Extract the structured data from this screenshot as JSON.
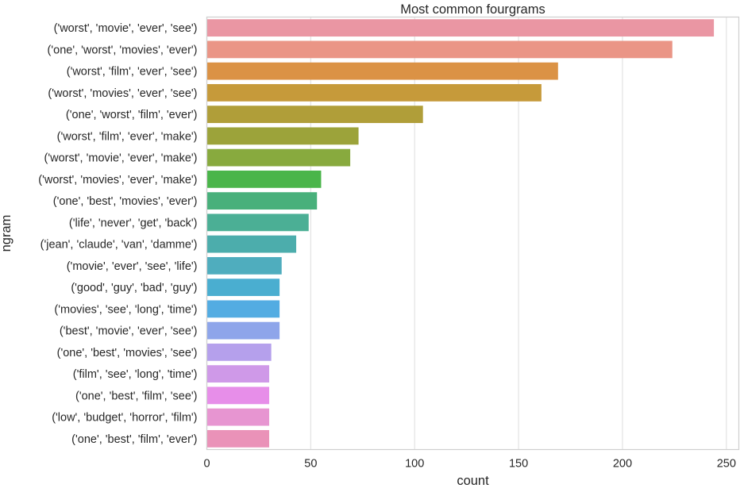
{
  "chart_data": {
    "type": "bar",
    "orientation": "horizontal",
    "title": "Most common fourgrams",
    "xlabel": "count",
    "ylabel": "ngram",
    "xlim": [
      0,
      256
    ],
    "xticks": [
      0,
      50,
      100,
      150,
      200,
      250
    ],
    "grid": "vertical",
    "categories": [
      "('worst', 'movie', 'ever', 'see')",
      "('one', 'worst', 'movies', 'ever')",
      "('worst', 'film', 'ever', 'see')",
      "('worst', 'movies', 'ever', 'see')",
      "('one', 'worst', 'film', 'ever')",
      "('worst', 'film', 'ever', 'make')",
      "('worst', 'movie', 'ever', 'make')",
      "('worst', 'movies', 'ever', 'make')",
      "('one', 'best', 'movies', 'ever')",
      "('life', 'never', 'get', 'back')",
      "('jean', 'claude', 'van', 'damme')",
      "('movie', 'ever', 'see', 'life')",
      "('good', 'guy', 'bad', 'guy')",
      "('movies', 'see', 'long', 'time')",
      "('best', 'movie', 'ever', 'see')",
      "('one', 'best', 'movies', 'see')",
      "('film', 'see', 'long', 'time')",
      "('one', 'best', 'film', 'see')",
      "('low', 'budget', 'horror', 'film')",
      "('one', 'best', 'film', 'ever')"
    ],
    "values": [
      244,
      224,
      169,
      161,
      104,
      73,
      69,
      55,
      53,
      49,
      43,
      36,
      35,
      35,
      35,
      31,
      30,
      30,
      30,
      30
    ],
    "colors": [
      "#ea96a3",
      "#ea9586",
      "#db9245",
      "#c69a3a",
      "#b09e39",
      "#9ca33a",
      "#88aa3e",
      "#4ab54a",
      "#48b07b",
      "#4baf95",
      "#4cadac",
      "#4fadbe",
      "#4aaed0",
      "#53ace2",
      "#8ea5ea",
      "#b5a0ec",
      "#cf99e8",
      "#e78ee9",
      "#e795d1",
      "#ea92b8"
    ]
  }
}
